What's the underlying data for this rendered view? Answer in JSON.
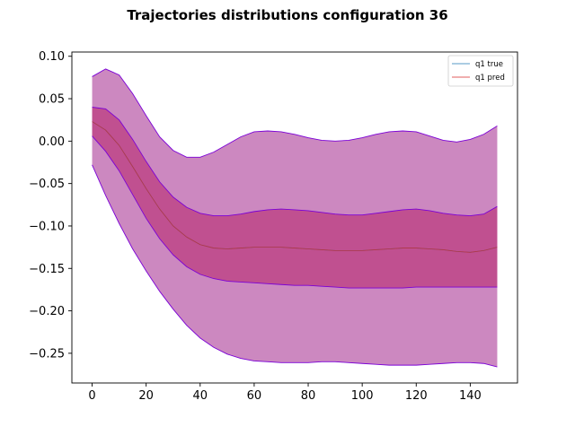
{
  "chart_data": {
    "type": "line",
    "title": "Trajectories distributions configuration  36",
    "xlabel": "",
    "ylabel": "",
    "xlim": [
      -7.5,
      157.5
    ],
    "ylim": [
      -0.285,
      0.105
    ],
    "xticks": [
      0,
      20,
      40,
      60,
      80,
      100,
      120,
      140
    ],
    "yticks": [
      0.1,
      0.05,
      0.0,
      -0.05,
      -0.1,
      -0.15,
      -0.2,
      -0.25
    ],
    "xtick_labels": [
      "0",
      "20",
      "40",
      "60",
      "80",
      "100",
      "120",
      "140"
    ],
    "ytick_labels": [
      "0.10",
      "0.05",
      "0.00",
      "−0.05",
      "−0.10",
      "−0.15",
      "−0.20",
      "−0.25"
    ],
    "grid": false,
    "legend_position": "top-right",
    "x": [
      0,
      5,
      10,
      15,
      20,
      25,
      30,
      35,
      40,
      45,
      50,
      55,
      60,
      65,
      70,
      75,
      80,
      85,
      90,
      95,
      100,
      105,
      110,
      115,
      120,
      125,
      130,
      135,
      140,
      145,
      150
    ],
    "series": [
      {
        "name": "q1 true",
        "color": "#1f77b4",
        "values": [
          0.023,
          0.013,
          -0.005,
          -0.03,
          -0.056,
          -0.08,
          -0.1,
          -0.113,
          -0.122,
          -0.126,
          -0.127,
          -0.126,
          -0.125,
          -0.125,
          -0.125,
          -0.126,
          -0.127,
          -0.128,
          -0.129,
          -0.129,
          -0.129,
          -0.128,
          -0.127,
          -0.126,
          -0.126,
          -0.127,
          -0.128,
          -0.13,
          -0.131,
          -0.129,
          -0.125
        ]
      },
      {
        "name": "q1 pred",
        "color": "#d62728",
        "values": [
          0.023,
          0.013,
          -0.005,
          -0.03,
          -0.056,
          -0.08,
          -0.1,
          -0.113,
          -0.122,
          -0.126,
          -0.127,
          -0.126,
          -0.125,
          -0.125,
          -0.125,
          -0.126,
          -0.127,
          -0.128,
          -0.129,
          -0.129,
          -0.129,
          -0.128,
          -0.127,
          -0.126,
          -0.126,
          -0.127,
          -0.128,
          -0.13,
          -0.131,
          -0.129,
          -0.125
        ]
      }
    ],
    "bands": [
      {
        "color": "#cc88c0",
        "edge_color": "#7b00d6",
        "upper": [
          0.076,
          0.085,
          0.078,
          0.056,
          0.03,
          0.005,
          -0.011,
          -0.019,
          -0.019,
          -0.013,
          -0.004,
          0.005,
          0.011,
          0.012,
          0.011,
          0.008,
          0.004,
          0.001,
          0.0,
          0.001,
          0.004,
          0.008,
          0.011,
          0.012,
          0.011,
          0.006,
          0.001,
          -0.001,
          0.002,
          0.008,
          0.018
        ],
        "lower": [
          -0.028,
          -0.064,
          -0.097,
          -0.127,
          -0.153,
          -0.177,
          -0.198,
          -0.217,
          -0.232,
          -0.243,
          -0.251,
          -0.256,
          -0.259,
          -0.26,
          -0.261,
          -0.261,
          -0.261,
          -0.26,
          -0.26,
          -0.261,
          -0.262,
          -0.263,
          -0.264,
          -0.264,
          -0.264,
          -0.263,
          -0.262,
          -0.261,
          -0.261,
          -0.262,
          -0.266
        ]
      },
      {
        "color": "#c05090",
        "edge_color": "#7b00d6",
        "upper": [
          0.04,
          0.038,
          0.025,
          0.002,
          -0.024,
          -0.048,
          -0.066,
          -0.078,
          -0.085,
          -0.088,
          -0.088,
          -0.086,
          -0.083,
          -0.081,
          -0.08,
          -0.081,
          -0.082,
          -0.084,
          -0.086,
          -0.087,
          -0.087,
          -0.085,
          -0.083,
          -0.081,
          -0.08,
          -0.082,
          -0.085,
          -0.087,
          -0.088,
          -0.086,
          -0.077
        ],
        "lower": [
          0.006,
          -0.012,
          -0.035,
          -0.063,
          -0.091,
          -0.115,
          -0.134,
          -0.148,
          -0.157,
          -0.162,
          -0.165,
          -0.166,
          -0.167,
          -0.168,
          -0.169,
          -0.17,
          -0.17,
          -0.171,
          -0.172,
          -0.173,
          -0.173,
          -0.173,
          -0.173,
          -0.173,
          -0.172,
          -0.172,
          -0.172,
          -0.172,
          -0.172,
          -0.172,
          -0.172
        ]
      }
    ]
  }
}
